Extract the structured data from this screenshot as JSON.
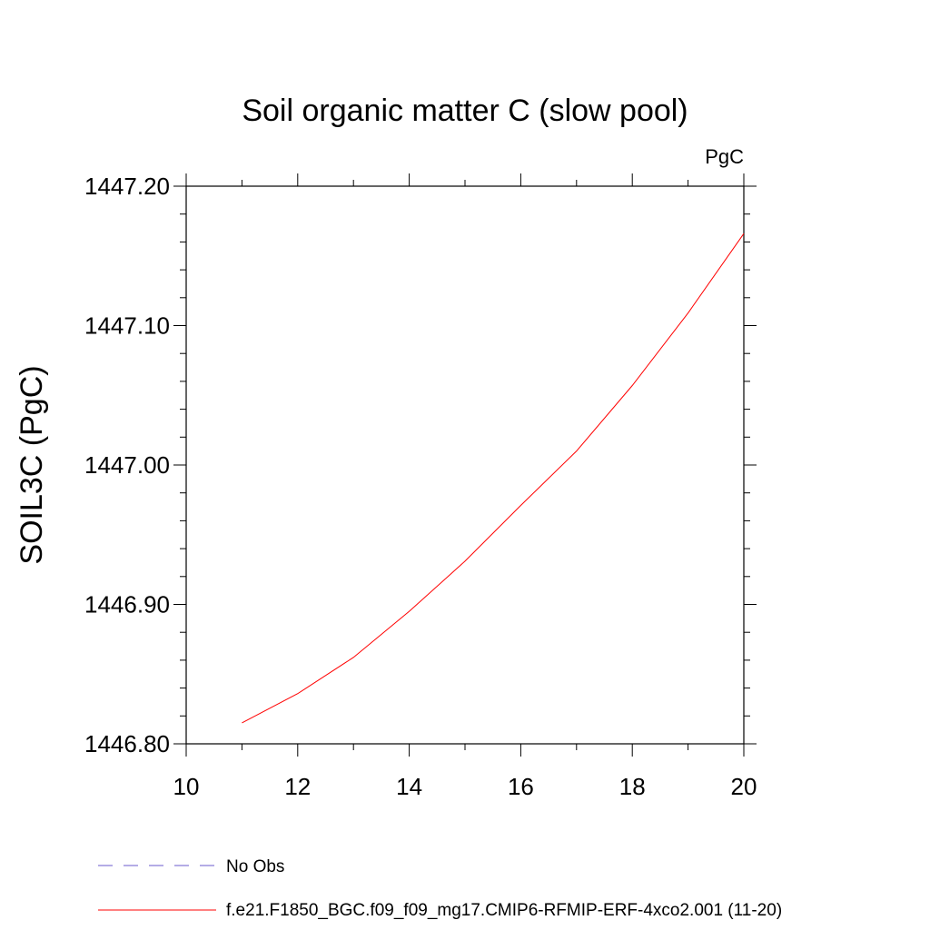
{
  "chart_data": {
    "type": "line",
    "title": "Soil organic matter C (slow pool)",
    "units_label": "PgC",
    "ylabel": "SOIL3C  (PgC)",
    "xlabel": "",
    "xlim": [
      10,
      20
    ],
    "ylim": [
      1446.8,
      1447.2
    ],
    "x_ticks": [
      10,
      12,
      14,
      16,
      18,
      20
    ],
    "x_tick_labels": [
      "10",
      "12",
      "14",
      "16",
      "18",
      "20"
    ],
    "y_ticks": [
      1446.8,
      1446.9,
      1447.0,
      1447.1,
      1447.2
    ],
    "y_tick_labels": [
      "1446.80",
      "1446.90",
      "1447.00",
      "1447.10",
      "1447.20"
    ],
    "x_minor_step": 1,
    "y_minor_step": 0.02,
    "series": [
      {
        "name": "No Obs",
        "color": "#6a5acd",
        "style": "dashed",
        "x": [],
        "values": []
      },
      {
        "name": "f.e21.F1850_BGC.f09_f09_mg17.CMIP6-RFMIP-ERF-4xco2.001 (11-20)",
        "color": "#ff0000",
        "style": "solid",
        "x": [
          11,
          12,
          13,
          14,
          15,
          16,
          17,
          18,
          19,
          20
        ],
        "values": [
          1446.815,
          1446.836,
          1446.862,
          1446.895,
          1446.931,
          1446.971,
          1447.01,
          1447.057,
          1447.109,
          1447.166
        ]
      }
    ],
    "legend": {
      "placement": "bottom-left",
      "entries": [
        {
          "label": "No Obs",
          "color": "#6a5acd",
          "style": "dashed"
        },
        {
          "label": "f.e21.F1850_BGC.f09_f09_mg17.CMIP6-RFMIP-ERF-4xco2.001 (11-20)",
          "color": "#ff0000",
          "style": "solid"
        }
      ]
    }
  }
}
